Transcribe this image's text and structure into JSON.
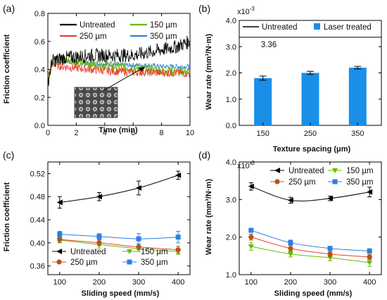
{
  "panel_labels": [
    "(a)",
    "(b)",
    "(c)",
    "(d)"
  ],
  "colors": {
    "untreated": "#000000",
    "s150": "#66bb00",
    "s250": "#e8402a",
    "s350": "#2f7fe0",
    "bar": "#1a8fe8",
    "marker250": "#b5541a",
    "ref_line": "#000000"
  },
  "chart_data": [
    {
      "panel": "(a)",
      "type": "line",
      "xlabel": "Time (min)",
      "ylabel": "Friction coefficient",
      "xlim": [
        0,
        10
      ],
      "ylim": [
        0.0,
        0.8
      ],
      "xticks": [
        "0",
        "2",
        "4",
        "6",
        "8",
        "10"
      ],
      "yticks": [
        "0.0",
        "0.2",
        "0.4",
        "0.6",
        "0.8"
      ],
      "legend_position": "top-right",
      "inset": "surface texture micrograph",
      "series": [
        {
          "name": "Untreated",
          "x": [
            0,
            0.3,
            1,
            2,
            3,
            4,
            5,
            6,
            7,
            8,
            9,
            10
          ],
          "values": [
            0.3,
            0.46,
            0.48,
            0.49,
            0.5,
            0.5,
            0.5,
            0.5,
            0.52,
            0.54,
            0.56,
            0.6
          ]
        },
        {
          "name": "150 µm",
          "x": [
            0,
            0.3,
            1,
            2,
            3,
            4,
            5,
            6,
            7,
            8,
            9,
            10
          ],
          "values": [
            0.33,
            0.45,
            0.47,
            0.46,
            0.44,
            0.43,
            0.42,
            0.41,
            0.4,
            0.39,
            0.385,
            0.38
          ]
        },
        {
          "name": "250 µm",
          "x": [
            0,
            0.3,
            1,
            2,
            3,
            4,
            5,
            6,
            7,
            8,
            9,
            10
          ],
          "values": [
            0.32,
            0.44,
            0.42,
            0.41,
            0.4,
            0.39,
            0.385,
            0.38,
            0.38,
            0.375,
            0.375,
            0.37
          ]
        },
        {
          "name": "350 µm",
          "x": [
            0,
            0.3,
            1,
            2,
            3,
            4,
            5,
            6,
            7,
            8,
            9,
            10
          ],
          "values": [
            0.35,
            0.45,
            0.46,
            0.45,
            0.44,
            0.44,
            0.43,
            0.43,
            0.43,
            0.42,
            0.42,
            0.42
          ]
        }
      ]
    },
    {
      "panel": "(b)",
      "type": "bar",
      "xlabel": "Texture spacing (μm)",
      "ylabel": "Wear rate (mm³/N·m)",
      "y_multiplier": "x10",
      "y_multiplier_exp": "-3",
      "categories": [
        "150",
        "250",
        "350"
      ],
      "ylim": [
        0.0,
        4.0
      ],
      "yticks": [
        "0.0",
        "1.0",
        "2.0",
        "3.0",
        "4.0"
      ],
      "legend_position": "top",
      "series": [
        {
          "name": "Laser treated",
          "values": [
            1.8,
            2.0,
            2.2
          ],
          "errors": [
            0.08,
            0.06,
            0.05
          ]
        }
      ],
      "reference": {
        "name": "Untreated",
        "value": 3.36,
        "label": "3.36"
      }
    },
    {
      "panel": "(c)",
      "type": "line",
      "xlabel": "Sliding speed (mm/s)",
      "ylabel": "Friction coefficient",
      "x": [
        100,
        200,
        300,
        400
      ],
      "xlim": [
        70,
        430
      ],
      "ylim": [
        0.345,
        0.54
      ],
      "xticks": [
        "100",
        "200",
        "300",
        "400"
      ],
      "yticks": [
        "0.36",
        "0.40",
        "0.44",
        "0.48",
        "0.52"
      ],
      "legend_position": "bottom-left",
      "series": [
        {
          "name": "Untreated",
          "values": [
            0.47,
            0.48,
            0.495,
            0.517
          ],
          "errors": [
            0.01,
            0.007,
            0.012,
            0.007
          ]
        },
        {
          "name": "150 µm",
          "values": [
            0.405,
            0.397,
            0.39,
            0.385
          ],
          "errors": [
            0.005,
            0.006,
            0.005,
            0.005
          ]
        },
        {
          "name": "250 µm",
          "values": [
            0.406,
            0.4,
            0.393,
            0.388
          ],
          "errors": [
            0.005,
            0.005,
            0.005,
            0.006
          ]
        },
        {
          "name": "350 µm",
          "values": [
            0.415,
            0.411,
            0.407,
            0.41
          ],
          "errors": [
            0.005,
            0.005,
            0.009,
            0.01
          ]
        }
      ]
    },
    {
      "panel": "(d)",
      "type": "line",
      "xlabel": "Sliding speed (mm/s)",
      "ylabel": "Wear rate (mm³/N·m)",
      "y_multiplier": "x10",
      "y_multiplier_exp": "-3",
      "x": [
        100,
        200,
        300,
        400
      ],
      "xlim": [
        70,
        430
      ],
      "ylim": [
        1.0,
        4.0
      ],
      "xticks": [
        "100",
        "200",
        "300",
        "400"
      ],
      "yticks": [
        "1.0",
        "2.0",
        "3.0",
        "4.0"
      ],
      "legend_position": "top-right",
      "series": [
        {
          "name": "Untreated",
          "values": [
            3.35,
            2.98,
            3.03,
            3.2
          ],
          "errors": [
            0.1,
            0.08,
            0.06,
            0.13
          ]
        },
        {
          "name": "150 µm",
          "values": [
            1.75,
            1.55,
            1.45,
            1.32
          ],
          "errors": [
            0.1,
            0.08,
            0.08,
            0.1
          ]
        },
        {
          "name": "250 µm",
          "values": [
            2.0,
            1.7,
            1.55,
            1.47
          ],
          "errors": [
            0.08,
            0.08,
            0.07,
            0.07
          ]
        },
        {
          "name": "350 µm",
          "values": [
            2.18,
            1.85,
            1.7,
            1.63
          ],
          "errors": [
            0.05,
            0.07,
            0.05,
            0.06
          ]
        }
      ]
    }
  ]
}
